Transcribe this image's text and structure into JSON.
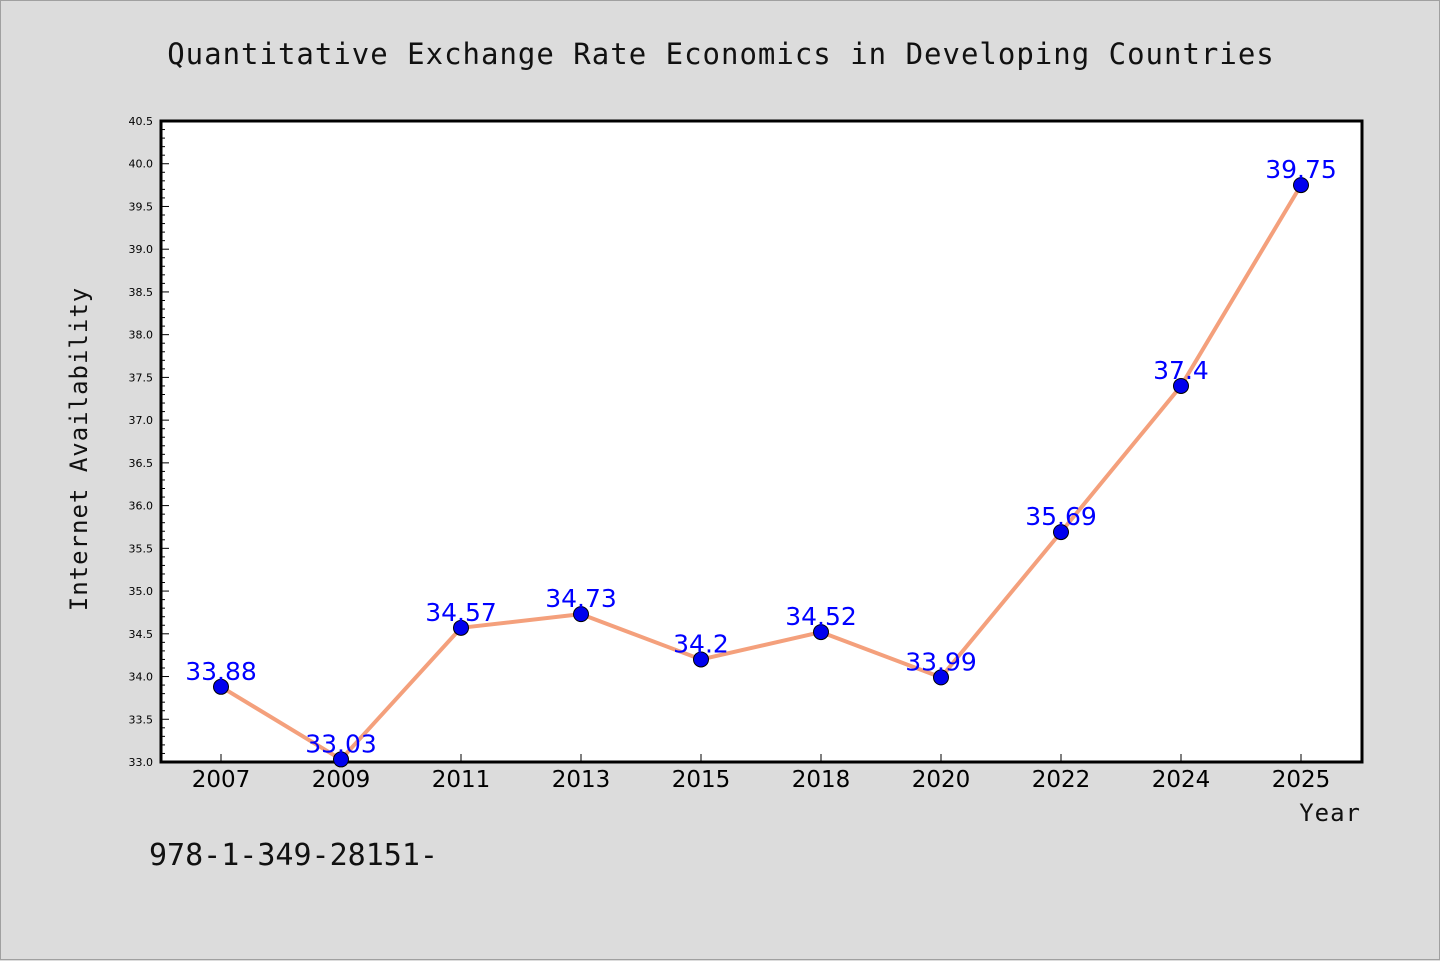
{
  "chart_data": {
    "type": "line",
    "title": "Quantitative Exchange Rate Economics in Developing Countries",
    "xlabel": "Year",
    "ylabel": "Internet Availability",
    "categories": [
      "2007",
      "2009",
      "2011",
      "2013",
      "2015",
      "2018",
      "2020",
      "2022",
      "2024",
      "2025"
    ],
    "series": [
      {
        "values": [
          33.88,
          33.03,
          34.57,
          34.73,
          34.2,
          34.52,
          33.99,
          35.69,
          37.4,
          39.75
        ],
        "labels": [
          "33.88",
          "33.03",
          "34.57",
          "34.73",
          "34.2",
          "34.52",
          "33.99",
          "35.69",
          "37.4",
          "39.75"
        ],
        "line_color": "#f4a07c",
        "marker_color": "#0000ee",
        "label_color": "#0000ff"
      }
    ],
    "ylim": [
      33.0,
      40.5
    ],
    "yticks": [
      "33.0",
      "33.5",
      "34.0",
      "34.5",
      "35.0",
      "35.5",
      "36.0",
      "36.5",
      "37.0",
      "37.5",
      "38.0",
      "38.5",
      "39.0",
      "39.5",
      "40.0",
      "40.5"
    ],
    "grid": false,
    "legend": false
  },
  "footnote": "978-1-349-28151-",
  "colors": {
    "background": "#dcdcdc",
    "plot_background": "#ffffff",
    "axis": "#000000"
  }
}
